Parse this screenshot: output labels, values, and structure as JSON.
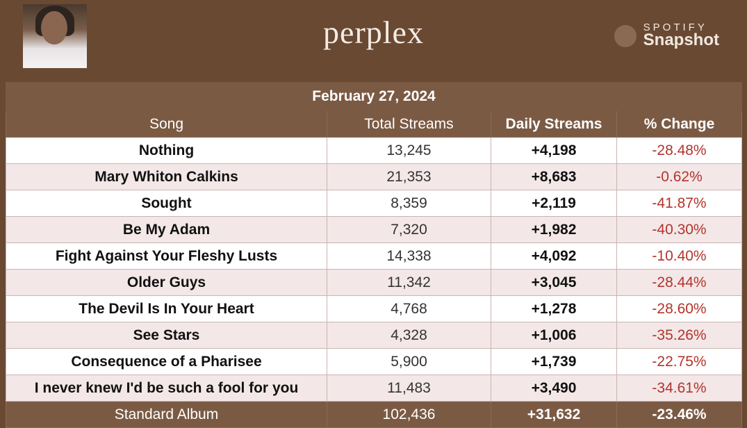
{
  "header": {
    "title": "perplex",
    "brand_top": "SPOTIFY",
    "brand_bottom": "Snapshot"
  },
  "table": {
    "date": "February 27, 2024",
    "columns": [
      "Song",
      "Total Streams",
      "Daily Streams",
      "% Change"
    ],
    "rows": [
      [
        "Nothing",
        "13,245",
        "+4,198",
        "-28.48%"
      ],
      [
        "Mary Whiton Calkins",
        "21,353",
        "+8,683",
        "-0.62%"
      ],
      [
        "Sought",
        "8,359",
        "+2,119",
        "-41.87%"
      ],
      [
        "Be My Adam",
        "7,320",
        "+1,982",
        "-40.30%"
      ],
      [
        "Fight Against Your Fleshy Lusts",
        "14,338",
        "+4,092",
        "-10.40%"
      ],
      [
        "Older Guys",
        "11,342",
        "+3,045",
        "-28.44%"
      ],
      [
        "The Devil Is In Your Heart",
        "4,768",
        "+1,278",
        "-28.60%"
      ],
      [
        "See Stars",
        "4,328",
        "+1,006",
        "-35.26%"
      ],
      [
        "Consequence of a Pharisee",
        "5,900",
        "+1,739",
        "-22.75%"
      ],
      [
        "I never knew I'd be such a fool for you",
        "11,483",
        "+3,490",
        "-34.61%"
      ]
    ],
    "footer": [
      "Standard Album",
      "102,436",
      "+31,632",
      "-23.46%"
    ]
  }
}
